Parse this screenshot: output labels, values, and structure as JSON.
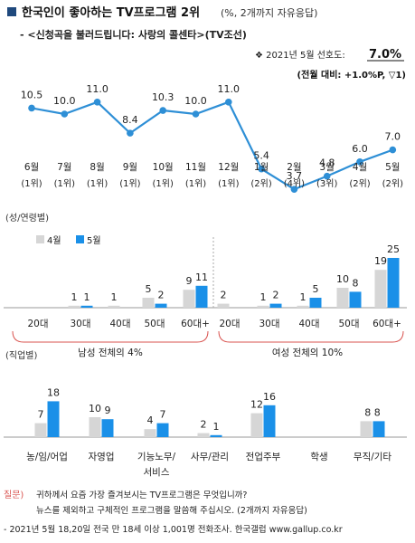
{
  "header": {
    "title": "한국인이 좋아하는 TV프로그램 2위",
    "title_note": "(%, 2개까지 자유응답)",
    "subtitle": "- <신청곡을 불러드립니다: 사랑의 콜센타>(TV조선)",
    "pref_label": "2021년 5월 선호도:",
    "pref_value": "7.0%",
    "pref_change": "(전월 대비: +1.0%P, ▽1)"
  },
  "colors": {
    "bullet": "#1f497d",
    "line": "#2e8fd6",
    "bar_prev": "#d6d6d6",
    "bar_curr": "#1a90e8",
    "bracket": "#d9534f",
    "question_label": "#d9534f"
  },
  "chart_data": [
    {
      "type": "line",
      "categories": [
        "6월",
        "7월",
        "8월",
        "9월",
        "10월",
        "11월",
        "12월",
        "1월",
        "2월",
        "3월",
        "4월",
        "5월"
      ],
      "ranks": [
        "(1위)",
        "(1위)",
        "(1위)",
        "(1위)",
        "(1위)",
        "(1위)",
        "(1위)",
        "(2위)",
        "(4위)",
        "(3위)",
        "(2위)",
        "(2위)"
      ],
      "values": [
        10.5,
        10.0,
        11.0,
        8.4,
        10.3,
        10.0,
        11.0,
        5.4,
        3.7,
        4.8,
        6.0,
        7.0
      ],
      "value_labels": [
        "10.5",
        "10.0",
        "11.0",
        "8.4",
        "10.3",
        "10.0",
        "11.0",
        "5.4",
        "3.7",
        "4.8",
        "6.0",
        "7.0"
      ]
    },
    {
      "type": "bar",
      "section_label": "(성/연령별)",
      "legend": [
        "4월",
        "5월"
      ],
      "categories": [
        "20대",
        "30대",
        "40대",
        "50대",
        "60대+",
        "20대",
        "30대",
        "40대",
        "50대",
        "60대+"
      ],
      "series": [
        {
          "name": "4월",
          "values": [
            0,
            1,
            1,
            5,
            9,
            2,
            1,
            1,
            10,
            19
          ],
          "labels": [
            "",
            "1",
            "1",
            "5",
            "9",
            "2",
            "1",
            "1",
            "10",
            "19"
          ]
        },
        {
          "name": "5월",
          "values": [
            0,
            1,
            0,
            2,
            11,
            0,
            2,
            5,
            8,
            25
          ],
          "labels": [
            "",
            "1",
            "",
            "2",
            "11",
            "",
            "2",
            "5",
            "8",
            "25"
          ]
        }
      ],
      "groups": [
        "남성 전체의 4%",
        "여성 전체의 10%"
      ]
    },
    {
      "type": "bar",
      "section_label": "(직업별)",
      "categories": [
        "농/임/어업",
        "자영업",
        "기능노무/\n서비스",
        "사무/관리",
        "전업주부",
        "학생",
        "무직/기타"
      ],
      "series": [
        {
          "name": "4월",
          "values": [
            7,
            10,
            4,
            2,
            12,
            0,
            8
          ],
          "labels": [
            "7",
            "10",
            "4",
            "2",
            "12",
            "",
            ""
          ]
        },
        {
          "name": "5월",
          "values": [
            18,
            9,
            7,
            1,
            16,
            0,
            8
          ],
          "labels": [
            "18",
            "9",
            "7",
            "1",
            "16",
            "",
            ""
          ]
        }
      ],
      "pair_labels": [
        "",
        "",
        "",
        "",
        "",
        "",
        "8 8"
      ]
    }
  ],
  "footer": {
    "question_label": "질문)",
    "question_line1": "귀하께서 요즘 가장 즐겨보시는 TV프로그램은 무엇입니까?",
    "question_line2": "뉴스를 제외하고 구체적인 프로그램을 말씀해 주십시오. (2개까지 자유응답)",
    "source": "- 2021년 5월 18,20일 전국 만 18세 이상 1,001명 전화조사. 한국갤럽 www.gallup.co.kr"
  }
}
